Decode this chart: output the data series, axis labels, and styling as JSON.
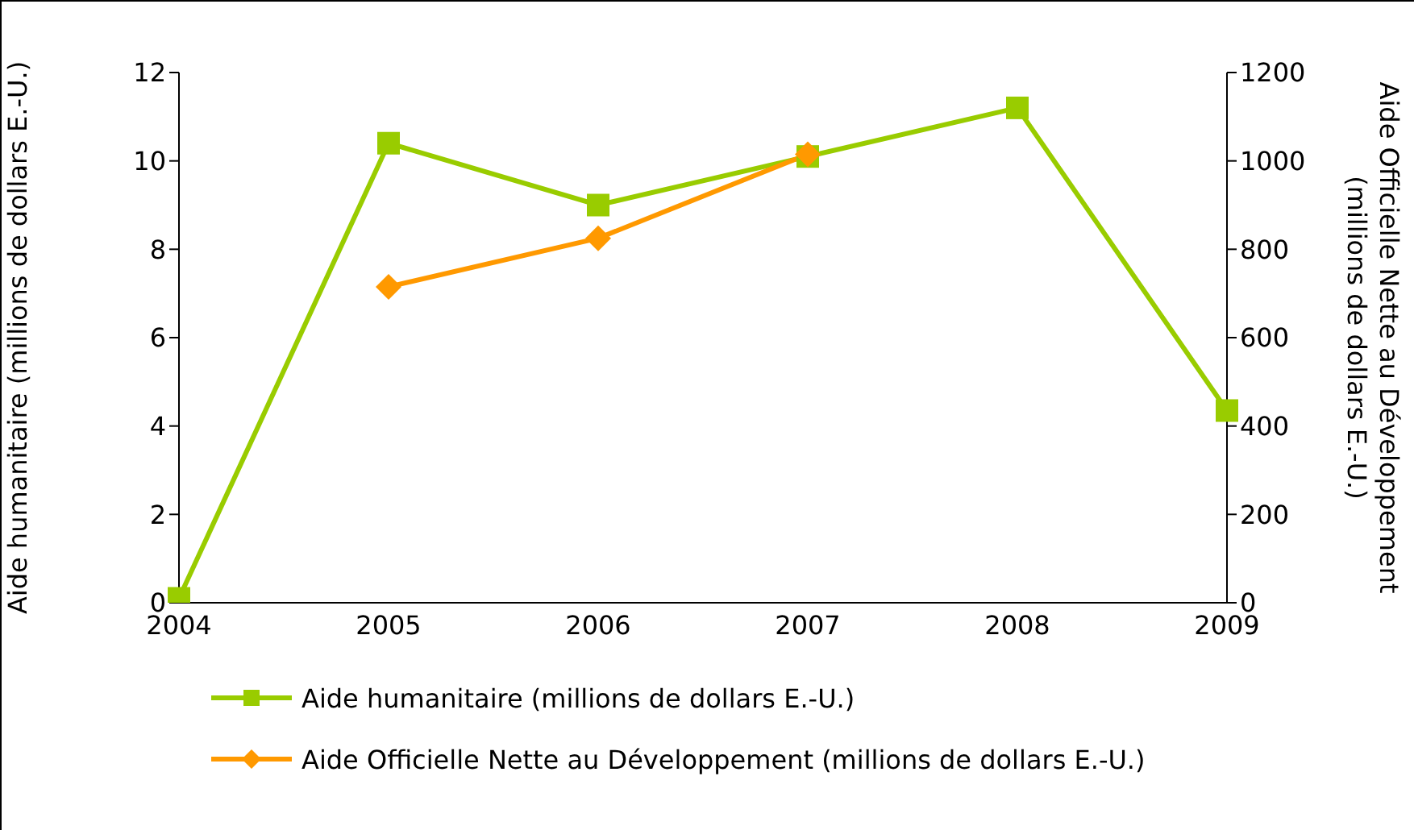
{
  "chart_data": {
    "type": "line",
    "categories": [
      "2004",
      "2005",
      "2006",
      "2007",
      "2008",
      "2009"
    ],
    "series": [
      {
        "name": "Aide humanitaire (millions de dollars E.-U.)",
        "color": "#99cc00",
        "marker": "square",
        "values": [
          0.1,
          10.4,
          9.0,
          10.1,
          11.2,
          4.35
        ]
      },
      {
        "name": "Aide Officielle Nette au Développement (millions de dollars E.-U.)",
        "color": "#ff9900",
        "marker": "diamond",
        "axis": "y2",
        "values": [
          null,
          715,
          825,
          1015,
          null,
          null
        ]
      }
    ],
    "ylabel": "Aide humanitaire (millions de dollars E.-U.)",
    "y2label": "Aide Officielle Nette au Développement (millions de dollars E.-U.)",
    "ylim": [
      0,
      12
    ],
    "yticks": [
      0,
      2,
      4,
      6,
      8,
      10,
      12
    ],
    "y2lim": [
      0,
      1200
    ],
    "y2ticks": [
      0,
      200,
      400,
      600,
      800,
      1000,
      1200
    ],
    "grid": false,
    "legend": "bottom"
  }
}
